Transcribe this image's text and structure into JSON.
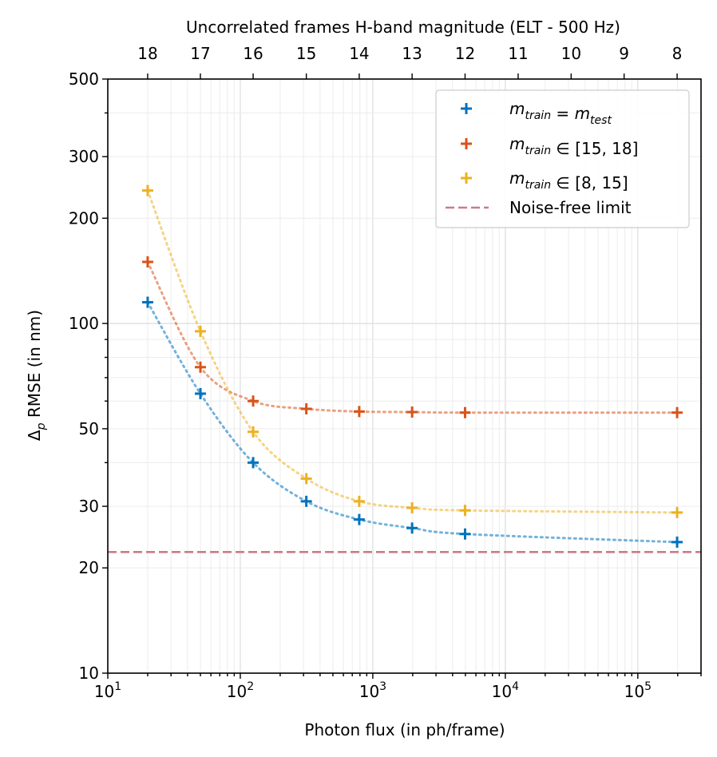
{
  "chart_data": {
    "type": "scatter",
    "title": "",
    "xlabel": "Photon flux (in ph/frame)",
    "ylabel": "Δp RMSE (in nm)",
    "xscale": "log",
    "yscale": "log",
    "xlim": [
      10,
      300000
    ],
    "ylim": [
      10,
      500
    ],
    "grid": true,
    "x_tick_labels": [
      {
        "value": 10,
        "base": "10",
        "exp": "1"
      },
      {
        "value": 100,
        "base": "10",
        "exp": "2"
      },
      {
        "value": 1000,
        "base": "10",
        "exp": "3"
      },
      {
        "value": 10000,
        "base": "10",
        "exp": "4"
      },
      {
        "value": 100000,
        "base": "10",
        "exp": "5"
      }
    ],
    "y_tick_labels": [
      {
        "value": 10,
        "label": "10"
      },
      {
        "value": 20,
        "label": "20"
      },
      {
        "value": 30,
        "label": "30"
      },
      {
        "value": 50,
        "label": "50"
      },
      {
        "value": 100,
        "label": "100"
      },
      {
        "value": 200,
        "label": "200"
      },
      {
        "value": 300,
        "label": "300"
      },
      {
        "value": 500,
        "label": "500"
      }
    ],
    "top_axis": {
      "label": "Uncorrelated frames H-band magnitude (ELT - 500 Hz)",
      "ticks": [
        {
          "value": 20,
          "label": "18"
        },
        {
          "value": 50,
          "label": "17"
        },
        {
          "value": 125,
          "label": "16"
        },
        {
          "value": 315,
          "label": "15"
        },
        {
          "value": 790,
          "label": "14"
        },
        {
          "value": 1980,
          "label": "13"
        },
        {
          "value": 4970,
          "label": "12"
        },
        {
          "value": 12500,
          "label": "11"
        },
        {
          "value": 31400,
          "label": "10"
        },
        {
          "value": 78800,
          "label": "9"
        },
        {
          "value": 198000,
          "label": "8"
        }
      ]
    },
    "series": [
      {
        "name": "m_train = m_test",
        "legend_parts": [
          [
            "m",
            "train",
            ""
          ],
          [
            "",
            "",
            " = "
          ],
          [
            "m",
            "test",
            ""
          ]
        ],
        "color": "#0072bd",
        "x": [
          20,
          50,
          125,
          315,
          790,
          1980,
          4970,
          198000
        ],
        "y": [
          115,
          63,
          40,
          31,
          27.5,
          26,
          25,
          23.7
        ]
      },
      {
        "name": "m_train ∈ [15, 18]",
        "legend_parts": [
          [
            "m",
            "train",
            ""
          ],
          [
            "",
            "",
            " ∈ [15, 18]"
          ]
        ],
        "color": "#d95319",
        "x": [
          20,
          50,
          125,
          315,
          790,
          1980,
          4970,
          198000
        ],
        "y": [
          150,
          75,
          60,
          57,
          56,
          55.8,
          55.6,
          55.6
        ]
      },
      {
        "name": "m_train ∈ [8, 15]",
        "legend_parts": [
          [
            "m",
            "train",
            ""
          ],
          [
            "",
            "",
            " ∈ [8, 15]"
          ]
        ],
        "color": "#edb120",
        "x": [
          20,
          50,
          125,
          315,
          790,
          1980,
          4970,
          198000
        ],
        "y": [
          240,
          95,
          49,
          36,
          31,
          29.7,
          29.2,
          28.8
        ]
      }
    ],
    "reference_line": {
      "name": "Noise-free limit",
      "y": 22.2,
      "color": "#cc7a8b",
      "style": "dashed"
    },
    "legend": {
      "position": "top-right"
    }
  }
}
